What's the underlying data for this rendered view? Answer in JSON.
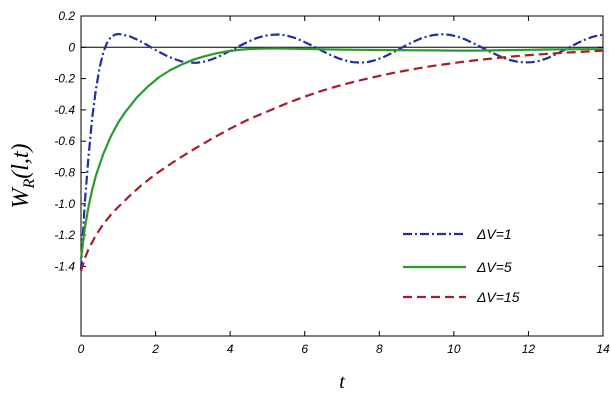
{
  "chart_data": {
    "type": "line",
    "xlabel": "t",
    "ylabel": "W_R(l,t)",
    "xlim": [
      0,
      14
    ],
    "ylim": [
      -1.45,
      0.2
    ],
    "xticks": [
      0,
      2,
      4,
      6,
      8,
      10,
      12,
      14
    ],
    "xtick_labels": [
      "0",
      "2",
      "4",
      "6",
      "8",
      "10",
      "12",
      "14"
    ],
    "yticks": [
      0.2,
      0,
      -0.2,
      -0.4,
      -0.6,
      -0.8,
      -1.0,
      -1.2,
      -1.4
    ],
    "ytick_labels": [
      "0.2",
      "0",
      "-0.2",
      "-0.4",
      "-0.6",
      "-0.8",
      "-1.0",
      "-1.2",
      "-1.4"
    ],
    "zero_line": true,
    "grid": false,
    "legend_position": "lower-right",
    "series": [
      {
        "name": "ΔV=1",
        "color": "#1f2fa0",
        "dash": "dash-dot",
        "x": [
          0,
          0.1,
          0.2,
          0.3,
          0.4,
          0.5,
          0.6,
          0.7,
          0.8,
          0.9,
          1.0,
          1.1,
          1.3,
          1.5,
          1.7,
          1.9,
          2.1,
          2.3,
          2.5,
          2.7,
          2.9,
          3.1,
          3.3,
          3.5,
          3.7,
          3.9,
          4.1,
          4.3,
          4.5,
          4.7,
          4.9,
          5.1,
          5.3,
          5.5,
          5.7,
          5.9,
          6.1,
          6.3,
          6.5,
          6.7,
          6.9,
          7.1,
          7.3,
          7.5,
          7.7,
          7.9,
          8.1,
          8.3,
          8.5,
          8.7,
          8.9,
          9.1,
          9.3,
          9.5,
          9.7,
          9.9,
          10.1,
          10.3,
          10.5,
          10.7,
          10.9,
          11.1,
          11.3,
          11.5,
          11.7,
          11.9,
          12.1,
          12.3,
          12.5,
          12.7,
          12.9,
          13.1,
          13.3,
          13.5,
          13.7,
          13.9,
          14.0
        ],
        "y": [
          -1.42,
          -1.0,
          -0.7,
          -0.45,
          -0.27,
          -0.13,
          -0.03,
          0.03,
          0.065,
          0.08,
          0.085,
          0.082,
          0.07,
          0.05,
          0.025,
          -0.003,
          -0.03,
          -0.055,
          -0.075,
          -0.09,
          -0.098,
          -0.099,
          -0.092,
          -0.078,
          -0.058,
          -0.035,
          -0.01,
          0.015,
          0.038,
          0.058,
          0.072,
          0.08,
          0.082,
          0.076,
          0.063,
          0.045,
          0.022,
          -0.002,
          -0.027,
          -0.05,
          -0.07,
          -0.085,
          -0.095,
          -0.098,
          -0.094,
          -0.082,
          -0.064,
          -0.041,
          -0.016,
          0.01,
          0.034,
          0.055,
          0.071,
          0.08,
          0.083,
          0.079,
          0.068,
          0.051,
          0.029,
          0.005,
          -0.02,
          -0.043,
          -0.064,
          -0.081,
          -0.092,
          -0.097,
          -0.095,
          -0.086,
          -0.07,
          -0.049,
          -0.025,
          0.0,
          0.025,
          0.047,
          0.065,
          0.077,
          0.08
        ]
      },
      {
        "name": "ΔV=5",
        "color": "#2a9a2a",
        "dash": "solid",
        "x": [
          0,
          0.1,
          0.2,
          0.3,
          0.4,
          0.6,
          0.8,
          1.0,
          1.2,
          1.5,
          1.8,
          2.1,
          2.4,
          2.7,
          3.0,
          3.3,
          3.6,
          3.9,
          4.2,
          4.5,
          4.8,
          5.2,
          5.6,
          6.0,
          6.5,
          7.0,
          7.5,
          8.0,
          8.5,
          9.0,
          9.5,
          10.0,
          10.5,
          11.0,
          11.5,
          12.0,
          12.5,
          13.0,
          13.5,
          14.0
        ],
        "y": [
          -1.35,
          -1.16,
          -1.02,
          -0.91,
          -0.82,
          -0.68,
          -0.57,
          -0.48,
          -0.41,
          -0.32,
          -0.25,
          -0.19,
          -0.145,
          -0.11,
          -0.08,
          -0.058,
          -0.04,
          -0.027,
          -0.017,
          -0.011,
          -0.008,
          -0.007,
          -0.008,
          -0.01,
          -0.013,
          -0.015,
          -0.016,
          -0.017,
          -0.018,
          -0.019,
          -0.02,
          -0.021,
          -0.021,
          -0.02,
          -0.018,
          -0.016,
          -0.014,
          -0.013,
          -0.012,
          -0.012
        ]
      },
      {
        "name": "ΔV=15",
        "color": "#a81c2c",
        "dash": "dashed",
        "x": [
          0,
          0.1,
          0.2,
          0.4,
          0.6,
          0.8,
          1.0,
          1.3,
          1.6,
          2.0,
          2.5,
          3.0,
          3.5,
          4.0,
          4.5,
          5.0,
          5.5,
          6.0,
          6.5,
          7.0,
          7.5,
          8.0,
          8.5,
          9.0,
          9.5,
          10.0,
          10.5,
          11.0,
          11.5,
          12.0,
          12.5,
          13.0,
          13.5,
          14.0
        ],
        "y": [
          -1.43,
          -1.35,
          -1.29,
          -1.2,
          -1.13,
          -1.07,
          -1.02,
          -0.95,
          -0.885,
          -0.81,
          -0.73,
          -0.655,
          -0.585,
          -0.52,
          -0.46,
          -0.41,
          -0.36,
          -0.315,
          -0.275,
          -0.24,
          -0.21,
          -0.183,
          -0.158,
          -0.136,
          -0.117,
          -0.1,
          -0.085,
          -0.072,
          -0.06,
          -0.05,
          -0.042,
          -0.034,
          -0.028,
          -0.022
        ]
      }
    ]
  }
}
